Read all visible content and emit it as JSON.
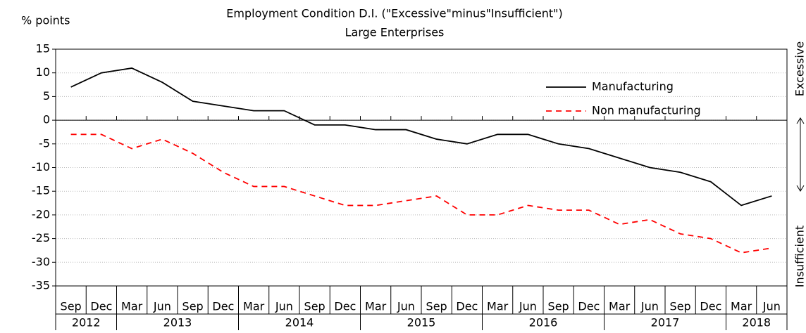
{
  "chart_data": {
    "type": "line",
    "title": "Employment Condition D.I.  (\"Excessive\"minus\"Insufficient\")",
    "subtitle": "Large Enterprises",
    "y_label": "% points",
    "upper_label": "Excessive",
    "lower_label": "Insufficient",
    "categories": [
      "Sep",
      "Dec",
      "Mar",
      "Jun",
      "Sep",
      "Dec",
      "Mar",
      "Jun",
      "Sep",
      "Dec",
      "Mar",
      "Jun",
      "Sep",
      "Dec",
      "Mar",
      "Jun",
      "Sep",
      "Dec",
      "Mar",
      "Jun",
      "Sep",
      "Dec",
      "Mar",
      "Jun"
    ],
    "years": [
      "2012",
      "2013",
      "2014",
      "2015",
      "2016",
      "2017",
      "2018"
    ],
    "series": [
      {
        "name": "Manufacturing",
        "color": "#000000",
        "style": "solid",
        "values": [
          7,
          10,
          11,
          8,
          4,
          3,
          2,
          2,
          -1,
          -1,
          -2,
          -2,
          -4,
          -5,
          -3,
          -3,
          -5,
          -6,
          -8,
          -10,
          -11,
          -13,
          -18,
          -16
        ]
      },
      {
        "name": "Non manufacturing",
        "color": "#ff0000",
        "style": "dashed",
        "values": [
          -3,
          -3,
          -6,
          -4,
          -7,
          -11,
          -14,
          -14,
          -16,
          -18,
          -18,
          -17,
          -16,
          -20,
          -20,
          -18,
          -19,
          -19,
          -22,
          -21,
          -24,
          -25,
          -28,
          -27
        ]
      }
    ],
    "ylim": [
      -35,
      15
    ],
    "yticks": [
      15,
      10,
      5,
      0,
      -5,
      -10,
      -15,
      -20,
      -25,
      -30,
      -35
    ],
    "grid": true
  }
}
